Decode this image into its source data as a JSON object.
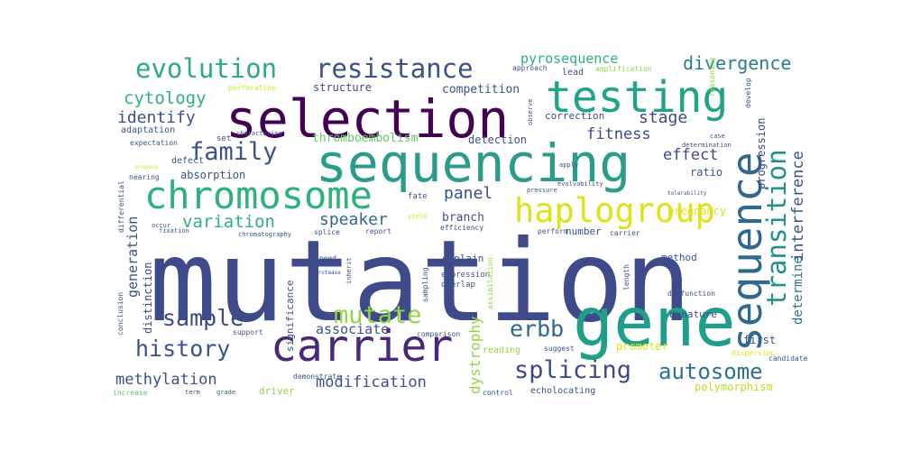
{
  "words": [
    {
      "text": "mutation",
      "color": "#3e4a89"
    },
    {
      "text": "selection",
      "color": "#440154"
    },
    {
      "text": "sequencing",
      "color": "#2b9b8a"
    },
    {
      "text": "gene",
      "color": "#1f9e89"
    },
    {
      "text": "testing",
      "color": "#20a386"
    },
    {
      "text": "chromosome",
      "color": "#2db27d"
    },
    {
      "text": "carrier",
      "color": "#482878"
    },
    {
      "text": "sequence",
      "color": "#31688e"
    },
    {
      "text": "haplogroup",
      "color": "#dde318"
    },
    {
      "text": "evolution",
      "color": "#29af7f"
    },
    {
      "text": "resistance",
      "color": "#3b528b"
    },
    {
      "text": "family",
      "color": "#3b528b"
    },
    {
      "text": "transition",
      "color": "#21918c"
    },
    {
      "text": "splicing",
      "color": "#3e4a89"
    },
    {
      "text": "autosome",
      "color": "#2c728e"
    },
    {
      "text": "history",
      "color": "#3b528b"
    },
    {
      "text": "sample",
      "color": "#3e4a89"
    },
    {
      "text": "mutate",
      "color": "#8fd744"
    },
    {
      "text": "erbb",
      "color": "#31688e"
    },
    {
      "text": "divergence",
      "color": "#277f8e"
    },
    {
      "text": "cytology",
      "color": "#2eb37c"
    },
    {
      "text": "identify",
      "color": "#3b528b"
    },
    {
      "text": "stage",
      "color": "#3e4a89"
    },
    {
      "text": "fitness",
      "color": "#3e4a89"
    },
    {
      "text": "effect",
      "color": "#3e4a89"
    },
    {
      "text": "interference",
      "color": "#3b528b"
    },
    {
      "text": "variation",
      "color": "#2db27d"
    },
    {
      "text": "panel",
      "color": "#3b528b"
    },
    {
      "text": "speaker",
      "color": "#31688e"
    },
    {
      "text": "generation",
      "color": "#3b528b"
    },
    {
      "text": "distinction",
      "color": "#3e4a89"
    },
    {
      "text": "methylation",
      "color": "#3b528b"
    },
    {
      "text": "modification",
      "color": "#3b528b"
    },
    {
      "text": "associate",
      "color": "#3b528b"
    },
    {
      "text": "dystrophy",
      "color": "#8fd744"
    },
    {
      "text": "determine",
      "color": "#2c728e"
    },
    {
      "text": "pyrosequence",
      "color": "#2db27d"
    },
    {
      "text": "structure",
      "color": "#3e4a89"
    },
    {
      "text": "competition",
      "color": "#3b528b"
    },
    {
      "text": "correction",
      "color": "#3b528b"
    },
    {
      "text": "thromboembolism",
      "color": "#5ec962"
    },
    {
      "text": "detection",
      "color": "#3b528b"
    },
    {
      "text": "absorption",
      "color": "#3b528b"
    },
    {
      "text": "adaptation",
      "color": "#3b528b"
    },
    {
      "text": "ratio",
      "color": "#3b528b"
    },
    {
      "text": "progression",
      "color": "#3e4a89"
    },
    {
      "text": "pregnancy",
      "color": "#dde318"
    },
    {
      "text": "branch",
      "color": "#3b528b"
    },
    {
      "text": "method",
      "color": "#3b528b"
    },
    {
      "text": "promoter",
      "color": "#dde318"
    },
    {
      "text": "denature",
      "color": "#3b528b"
    },
    {
      "text": "first",
      "color": "#3b528b"
    },
    {
      "text": "polymorphism",
      "color": "#bddf26"
    },
    {
      "text": "driver",
      "color": "#8fd744"
    },
    {
      "text": "number",
      "color": "#3b528b"
    },
    {
      "text": "explain",
      "color": "#3b528b"
    },
    {
      "text": "expression",
      "color": "#3b528b"
    },
    {
      "text": "overlap",
      "color": "#3b528b"
    },
    {
      "text": "significance",
      "color": "#3b528b"
    },
    {
      "text": "efficiency",
      "color": "#3b528b"
    },
    {
      "text": "fate",
      "color": "#3b528b"
    },
    {
      "text": "set",
      "color": "#3b528b"
    },
    {
      "text": "defect",
      "color": "#3b528b"
    },
    {
      "text": "nearing",
      "color": "#3b528b"
    },
    {
      "text": "expectation",
      "color": "#3b528b"
    },
    {
      "text": "characterize",
      "color": "#3b528b"
    },
    {
      "text": "perforation",
      "color": "#dde318"
    },
    {
      "text": "lead",
      "color": "#3b528b"
    },
    {
      "text": "approach",
      "color": "#3b528b"
    },
    {
      "text": "amplification",
      "color": "#8fd744"
    },
    {
      "text": "develop",
      "color": "#3b528b"
    },
    {
      "text": "determination",
      "color": "#3b528b"
    },
    {
      "text": "evolvability",
      "color": "#3b528b"
    },
    {
      "text": "tolerability",
      "color": "#3b528b"
    },
    {
      "text": "pressure",
      "color": "#3b528b"
    },
    {
      "text": "apply",
      "color": "#3b528b"
    },
    {
      "text": "yield",
      "color": "#dde318"
    },
    {
      "text": "perform",
      "color": "#3b528b"
    },
    {
      "text": "carrier",
      "color": "#3b528b"
    },
    {
      "text": "length",
      "color": "#3b528b"
    },
    {
      "text": "dysfunction",
      "color": "#3b528b"
    },
    {
      "text": "splice",
      "color": "#3b528b"
    },
    {
      "text": "report",
      "color": "#3b528b"
    },
    {
      "text": "speed",
      "color": "#3b528b"
    },
    {
      "text": "sampling",
      "color": "#3b528b"
    },
    {
      "text": "assimilation",
      "color": "#8fd744"
    },
    {
      "text": "reading",
      "color": "#8fd744"
    },
    {
      "text": "suggest",
      "color": "#3b528b"
    },
    {
      "text": "comparison",
      "color": "#3b528b"
    },
    {
      "text": "support",
      "color": "#3b528b"
    },
    {
      "text": "demonstrate",
      "color": "#3b528b"
    },
    {
      "text": "echolocating",
      "color": "#3b528b"
    },
    {
      "text": "control",
      "color": "#3b528b"
    },
    {
      "text": "candidate",
      "color": "#3b528b"
    },
    {
      "text": "dispersion",
      "color": "#dde318"
    },
    {
      "text": "increase",
      "color": "#5ec962"
    },
    {
      "text": "conclusion",
      "color": "#3b528b"
    },
    {
      "text": "differential",
      "color": "#3b528b"
    },
    {
      "text": "fixation",
      "color": "#3b528b"
    },
    {
      "text": "chromatography",
      "color": "#3b528b"
    },
    {
      "text": "inherit",
      "color": "#3b528b"
    },
    {
      "text": "occur",
      "color": "#3b528b"
    },
    {
      "text": "protease",
      "color": "#3b528b"
    },
    {
      "text": "observe",
      "color": "#3b528b"
    },
    {
      "text": "case",
      "color": "#3b528b"
    },
    {
      "text": "reasoning",
      "color": "#8fd744"
    },
    {
      "text": "propose",
      "color": "#dde318"
    },
    {
      "text": "term",
      "color": "#3b528b"
    },
    {
      "text": "grade",
      "color": "#3b528b"
    }
  ]
}
